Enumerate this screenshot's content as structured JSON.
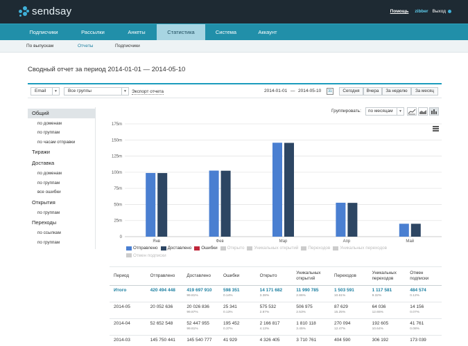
{
  "brand": {
    "name": "sendsay",
    "accent": "#218fa9",
    "dark": "#1e2a33"
  },
  "top_links": {
    "help": "Помощь",
    "user": "zibber",
    "exit": "Выход"
  },
  "main_nav": [
    "Подписчики",
    "Рассылки",
    "Анкеты",
    "Статистика",
    "Система",
    "Аккаунт"
  ],
  "main_nav_active": "Статистика",
  "sub_nav": [
    "По выпускам",
    "Отчеты",
    "Подписчики"
  ],
  "sub_nav_active": "Отчеты",
  "page_title": "Сводный отчет за период 2014-01-01 — 2014-05-10",
  "filters": {
    "email": "Email",
    "groups": "Все группы",
    "export": "Экспорт отчета",
    "date_from": "2014-01-01",
    "dash": "—",
    "date_to": "2014-05-10",
    "calendar_icon": "31",
    "period_buttons": [
      "Сегодня",
      "Вчера",
      "За неделю",
      "За месяц"
    ]
  },
  "sidebar": [
    {
      "label": "Общий",
      "type": "cat",
      "active": true
    },
    {
      "label": "по доменам",
      "type": "sub"
    },
    {
      "label": "по группам",
      "type": "sub"
    },
    {
      "label": "по часам отправки",
      "type": "sub"
    },
    {
      "label": "Тиражи",
      "type": "cat"
    },
    {
      "label": "Доставка",
      "type": "cat"
    },
    {
      "label": "по доменам",
      "type": "sub"
    },
    {
      "label": "по группам",
      "type": "sub"
    },
    {
      "label": "все ошибки",
      "type": "sub"
    },
    {
      "label": "Открытия",
      "type": "cat"
    },
    {
      "label": "по группам",
      "type": "sub"
    },
    {
      "label": "Переходы",
      "type": "cat"
    },
    {
      "label": "по ссылкам",
      "type": "sub"
    },
    {
      "label": "по группам",
      "type": "sub"
    }
  ],
  "grouping": {
    "label": "Группировать:",
    "value": "по месяцам",
    "chart_type_icons": [
      "line-chart-icon",
      "area-chart-icon",
      "bar-chart-icon"
    ]
  },
  "chart_data": {
    "type": "bar",
    "categories": [
      "Янв",
      "Фев",
      "Мар",
      "Апр",
      "Май"
    ],
    "ytick_labels": [
      "0",
      "25m",
      "50m",
      "75m",
      "100m",
      "125m",
      "150m",
      "175m"
    ],
    "ylim": [
      0,
      175000000
    ],
    "grid": true,
    "legend_position": "bottom",
    "series": [
      {
        "name": "Отправлено",
        "color": "#4a7fd1",
        "values": [
          98800000,
          102500000,
          145750441,
          52652548,
          20052636
        ]
      },
      {
        "name": "Доставлено",
        "color": "#2d4663",
        "values": [
          98700000,
          102300000,
          145540777,
          52447955,
          20026836
        ]
      }
    ]
  },
  "legend": [
    {
      "name": "Отправлено",
      "color": "#4a7fd1",
      "on": true
    },
    {
      "name": "Доставлено",
      "color": "#2d4663",
      "on": true
    },
    {
      "name": "Ошибки",
      "color": "#c0263a",
      "on": true
    },
    {
      "name": "Открыто",
      "color": "#cccccc",
      "on": false
    },
    {
      "name": "Уникальных открытий",
      "color": "#cccccc",
      "on": false
    },
    {
      "name": "Переходов",
      "color": "#cccccc",
      "on": false
    },
    {
      "name": "Уникальных переходов",
      "color": "#cccccc",
      "on": false
    },
    {
      "name": "Отмен подписки",
      "color": "#cccccc",
      "on": false
    }
  ],
  "table": {
    "headers": [
      "Период",
      "Отправлено",
      "Доставлено",
      "Ошибки",
      "Открыто",
      "Уникальных открытий",
      "Переходов",
      "Уникальных переходов",
      "Отмен подписки"
    ],
    "rows": [
      {
        "period": "Итого",
        "total": true,
        "cells": [
          {
            "v": "420 494 448",
            "p": ""
          },
          {
            "v": "419 697 910",
            "p": "99.81%"
          },
          {
            "v": "598 351",
            "p": "0.14%"
          },
          {
            "v": "14 171 682",
            "p": "3.38%"
          },
          {
            "v": "11 990 785",
            "p": "2.86%"
          },
          {
            "v": "1 503 591",
            "p": "10.61%"
          },
          {
            "v": "1 117 581",
            "p": "9.32%"
          },
          {
            "v": "484 574",
            "p": "0.12%"
          }
        ]
      },
      {
        "period": "2014-05",
        "total": false,
        "cells": [
          {
            "v": "20 052 636",
            "p": ""
          },
          {
            "v": "20 026 836",
            "p": "99.87%"
          },
          {
            "v": "25 341",
            "p": "0.13%"
          },
          {
            "v": "575 532",
            "p": "2.87%"
          },
          {
            "v": "506 975",
            "p": "2.53%"
          },
          {
            "v": "87 629",
            "p": "15.25%"
          },
          {
            "v": "64 036",
            "p": "12.65%"
          },
          {
            "v": "14 156",
            "p": "0.07%"
          }
        ]
      },
      {
        "period": "2014-04",
        "total": false,
        "cells": [
          {
            "v": "52 652 548",
            "p": ""
          },
          {
            "v": "52 447 955",
            "p": "99.61%"
          },
          {
            "v": "195 452",
            "p": "0.37%"
          },
          {
            "v": "2 166 817",
            "p": "4.13%"
          },
          {
            "v": "1 810 118",
            "p": "3.45%"
          },
          {
            "v": "270 094",
            "p": "12.47%"
          },
          {
            "v": "192 605",
            "p": "10.64%"
          },
          {
            "v": "41 761",
            "p": "0.08%"
          }
        ]
      },
      {
        "period": "2014-03",
        "total": false,
        "cells": [
          {
            "v": "145 750 441",
            "p": ""
          },
          {
            "v": "145 540 777",
            "p": ""
          },
          {
            "v": "41 929",
            "p": ""
          },
          {
            "v": "4 326 405",
            "p": ""
          },
          {
            "v": "3 710 761",
            "p": ""
          },
          {
            "v": "404 590",
            "p": ""
          },
          {
            "v": "306 192",
            "p": ""
          },
          {
            "v": "173 039",
            "p": ""
          }
        ]
      }
    ]
  }
}
